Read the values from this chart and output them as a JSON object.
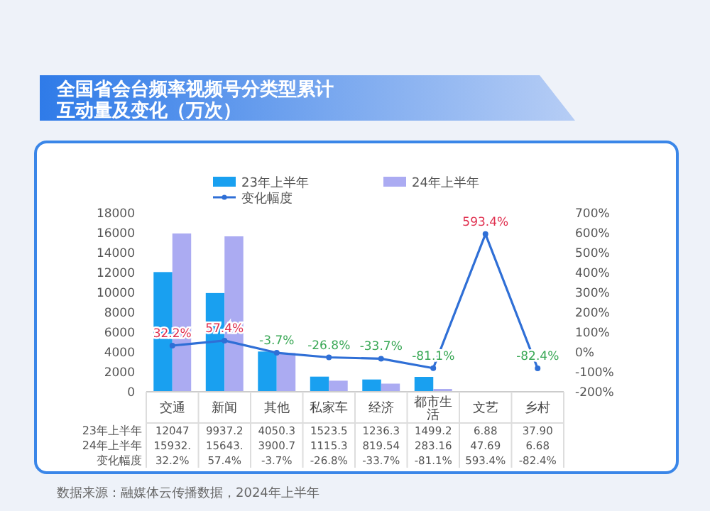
{
  "chart_data": {
    "type": "bar",
    "title": "全国省会台频率视频号分类型累计互动量及变化（万次）",
    "categories": [
      "交通",
      "新闻",
      "其他",
      "私家车",
      "经济",
      "都市生活",
      "文艺",
      "乡村"
    ],
    "series": [
      {
        "name": "23年上半年",
        "color": "#19a0f0",
        "values": [
          12047,
          9937.2,
          4050.3,
          1523.5,
          1236.3,
          1499.2,
          6.88,
          37.9
        ],
        "value_labels": [
          "12047",
          "9937.2",
          "4050.3",
          "1523.5",
          "1236.3",
          "1499.2",
          "6.88",
          "37.90"
        ]
      },
      {
        "name": "24年上半年",
        "color": "#ababf2",
        "values": [
          15932,
          15643,
          3900.7,
          1115.3,
          819.54,
          283.16,
          47.69,
          6.68
        ],
        "value_labels": [
          "15932.",
          "15643.",
          "3900.7",
          "1115.3",
          "819.54",
          "283.16",
          "47.69",
          "6.68"
        ]
      },
      {
        "name": "变化幅度",
        "type": "line",
        "axis": "y2",
        "color": "#2f6fd6",
        "values": [
          32.2,
          57.4,
          -3.7,
          -26.8,
          -33.7,
          -81.1,
          593.4,
          -82.4
        ],
        "value_labels": [
          "32.2%",
          "57.4%",
          "-3.7%",
          "-26.8%",
          "-33.7%",
          "-81.1%",
          "593.4%",
          "-82.4%"
        ]
      }
    ],
    "ylim": [
      0,
      18000
    ],
    "yticks": [
      0,
      2000,
      4000,
      6000,
      8000,
      10000,
      12000,
      14000,
      16000,
      18000
    ],
    "y2lim": [
      -200,
      700
    ],
    "y2ticks": [
      {
        "value": -200,
        "label": "-200%"
      },
      {
        "value": -100,
        "label": "-100%"
      },
      {
        "value": 0,
        "label": "0%"
      },
      {
        "value": 100,
        "label": "100%"
      },
      {
        "value": 200,
        "label": "200%"
      },
      {
        "value": 300,
        "label": "300%"
      },
      {
        "value": 400,
        "label": "400%"
      },
      {
        "value": 500,
        "label": "500%"
      },
      {
        "value": 600,
        "label": "600%"
      },
      {
        "value": 700,
        "label": "700%"
      }
    ],
    "legend": "top",
    "marker": "circle",
    "grid": false,
    "annotations": [
      "数据来源：融媒体云传播数据，2024年上半年"
    ]
  }
}
